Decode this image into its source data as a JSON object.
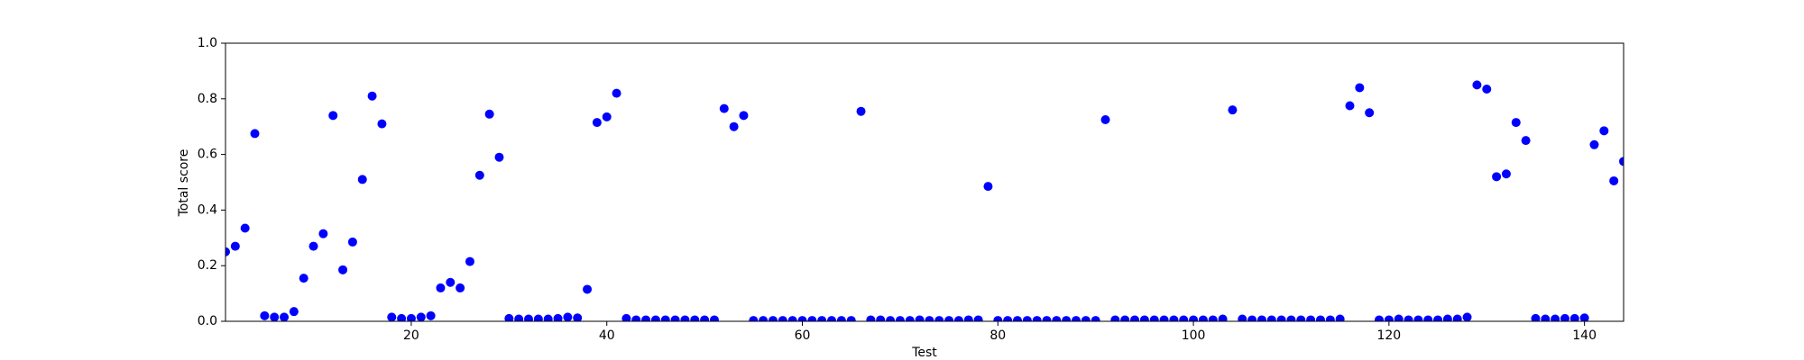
{
  "chart_data": {
    "type": "scatter",
    "x_label": "Test",
    "y_label": "Total score",
    "color": "#0000ff",
    "xlim": [
      1,
      144
    ],
    "ylim": [
      0,
      1
    ],
    "xticks": [
      20,
      40,
      60,
      80,
      100,
      120,
      140
    ],
    "yticks": [
      {
        "value": 0,
        "label": "0.0"
      },
      0.2,
      0.4,
      0.6,
      0.8,
      {
        "value": 1,
        "label": "1.0"
      }
    ],
    "grid": false,
    "x": [
      1,
      2,
      3,
      4,
      5,
      6,
      7,
      8,
      9,
      10,
      11,
      12,
      13,
      14,
      15,
      16,
      17,
      18,
      19,
      20,
      21,
      22,
      23,
      24,
      25,
      26,
      27,
      28,
      29,
      30,
      31,
      32,
      33,
      34,
      35,
      36,
      37,
      38,
      39,
      40,
      41,
      42,
      43,
      44,
      45,
      46,
      47,
      48,
      49,
      50,
      51,
      52,
      53,
      54,
      55,
      56,
      57,
      58,
      59,
      60,
      61,
      62,
      63,
      64,
      65,
      66,
      67,
      68,
      69,
      70,
      71,
      72,
      73,
      74,
      75,
      76,
      77,
      78,
      79,
      80,
      81,
      82,
      83,
      84,
      85,
      86,
      87,
      88,
      89,
      90,
      91,
      92,
      93,
      94,
      95,
      96,
      97,
      98,
      99,
      100,
      101,
      102,
      103,
      104,
      105,
      106,
      107,
      108,
      109,
      110,
      111,
      112,
      113,
      114,
      115,
      116,
      117,
      118,
      119,
      120,
      121,
      122,
      123,
      124,
      125,
      126,
      127,
      128,
      129,
      130,
      131,
      132,
      133,
      134,
      135,
      136,
      137,
      138,
      139,
      140,
      141,
      142,
      143,
      144
    ],
    "values": [
      0.25,
      0.27,
      0.335,
      0.675,
      0.02,
      0.015,
      0.015,
      0.035,
      0.155,
      0.27,
      0.315,
      0.74,
      0.185,
      0.285,
      0.51,
      0.81,
      0.71,
      0.015,
      0.01,
      0.01,
      0.015,
      0.02,
      0.12,
      0.14,
      0.12,
      0.215,
      0.525,
      0.745,
      0.59,
      0.01,
      0.008,
      0.008,
      0.008,
      0.008,
      0.01,
      0.015,
      0.012,
      0.115,
      0.715,
      0.735,
      0.82,
      0.01,
      0.005,
      0.005,
      0.005,
      0.005,
      0.005,
      0.005,
      0.005,
      0.005,
      0.005,
      0.765,
      0.7,
      0.74,
      0.003,
      0.003,
      0.003,
      0.003,
      0.003,
      0.003,
      0.003,
      0.003,
      0.003,
      0.003,
      0.003,
      0.755,
      0.005,
      0.005,
      0.003,
      0.003,
      0.003,
      0.005,
      0.003,
      0.003,
      0.003,
      0.003,
      0.005,
      0.005,
      0.485,
      0.003,
      0.003,
      0.003,
      0.003,
      0.003,
      0.003,
      0.003,
      0.003,
      0.003,
      0.003,
      0.003,
      0.725,
      0.005,
      0.005,
      0.005,
      0.005,
      0.005,
      0.005,
      0.005,
      0.005,
      0.005,
      0.005,
      0.005,
      0.008,
      0.76,
      0.008,
      0.005,
      0.005,
      0.005,
      0.005,
      0.005,
      0.005,
      0.005,
      0.005,
      0.005,
      0.008,
      0.775,
      0.84,
      0.75,
      0.005,
      0.005,
      0.008,
      0.005,
      0.005,
      0.005,
      0.005,
      0.008,
      0.008,
      0.015,
      0.85,
      0.835,
      0.52,
      0.53,
      0.715,
      0.65,
      0.01,
      0.008,
      0.008,
      0.01,
      0.01,
      0.012,
      0.635,
      0.685,
      0.505,
      0.575
    ]
  }
}
